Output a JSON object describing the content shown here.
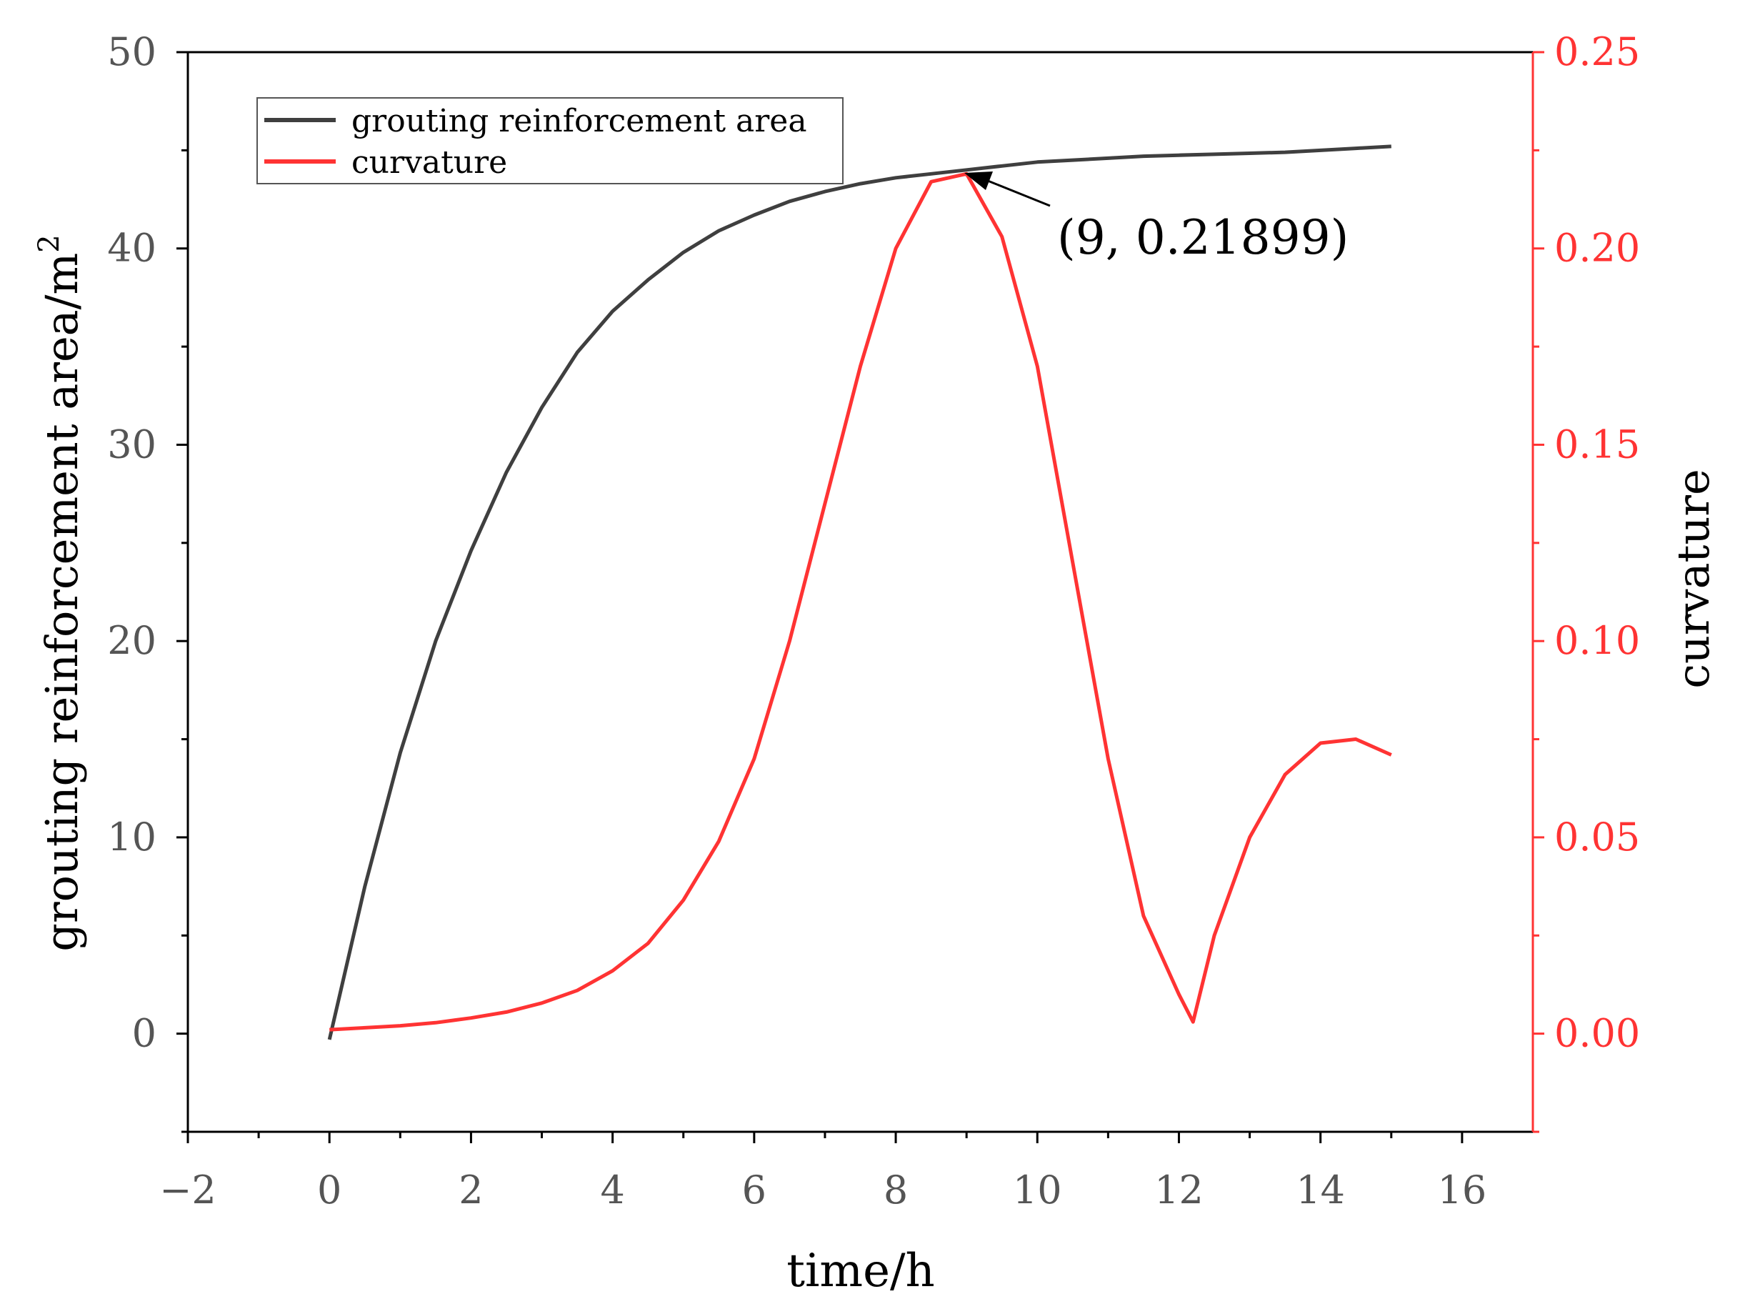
{
  "chart_data": {
    "type": "line",
    "xlabel": "time/h",
    "ylabel_left": "grouting reinforcement area/m",
    "ylabel_left_superscript": "2",
    "ylabel_right": "curvature",
    "xlim": [
      -2,
      17
    ],
    "ylim_left": [
      -5,
      50
    ],
    "ylim_right": [
      -0.025,
      0.25
    ],
    "x_ticks": [
      -2,
      0,
      2,
      4,
      6,
      8,
      10,
      12,
      14,
      16
    ],
    "x_tick_labels": [
      "−2",
      "0",
      "2",
      "4",
      "6",
      "8",
      "10",
      "12",
      "14",
      "16"
    ],
    "y_left_ticks": [
      0,
      10,
      20,
      30,
      40,
      50
    ],
    "y_left_tick_labels": [
      "0",
      "10",
      "20",
      "30",
      "40",
      "50"
    ],
    "y_right_ticks": [
      0,
      0.05,
      0.1,
      0.15,
      0.2,
      0.25
    ],
    "y_right_tick_labels": [
      "0.00",
      "0.05",
      "0.10",
      "0.15",
      "0.20",
      "0.25"
    ],
    "grid": false,
    "legend_position": "top-left",
    "colors": {
      "area": "#3f3f3f",
      "curvature": "#ff3333",
      "right_axis": "#ff3333",
      "left_axis_text": "#555555"
    },
    "series": [
      {
        "name": "grouting reinforcement area",
        "axis": "left",
        "x": [
          0,
          0.5,
          1,
          1.5,
          2,
          2.5,
          3,
          3.5,
          4,
          4.5,
          5,
          5.5,
          6,
          6.5,
          7,
          7.5,
          8,
          8.5,
          9,
          9.5,
          10,
          10.5,
          11,
          11.5,
          12,
          12.5,
          13,
          13.5,
          14,
          14.5,
          15
        ],
        "y": [
          -0.3,
          7.5,
          14.3,
          20.0,
          24.6,
          28.6,
          31.9,
          34.7,
          36.8,
          38.4,
          39.8,
          40.9,
          41.7,
          42.4,
          42.9,
          43.3,
          43.6,
          43.8,
          44.0,
          44.2,
          44.4,
          44.5,
          44.6,
          44.7,
          44.75,
          44.8,
          44.85,
          44.9,
          45.0,
          45.1,
          45.2
        ]
      },
      {
        "name": "curvature",
        "axis": "right",
        "x": [
          0,
          0.5,
          1,
          1.5,
          2,
          2.5,
          3,
          3.5,
          4,
          4.5,
          5,
          5.5,
          6,
          6.5,
          7,
          7.5,
          8,
          8.5,
          9,
          9.5,
          10,
          10.5,
          11,
          11.5,
          12,
          12.2,
          12.5,
          13,
          13.5,
          14,
          14.5,
          15
        ],
        "y": [
          0.001,
          0.0015,
          0.002,
          0.0028,
          0.004,
          0.0055,
          0.0078,
          0.011,
          0.016,
          0.023,
          0.034,
          0.049,
          0.07,
          0.1,
          0.135,
          0.17,
          0.2,
          0.217,
          0.219,
          0.203,
          0.17,
          0.12,
          0.07,
          0.03,
          0.01,
          0.003,
          0.025,
          0.05,
          0.066,
          0.074,
          0.075,
          0.071
        ]
      }
    ],
    "annotation": {
      "text": "(9,  0.21899)",
      "x": 9,
      "y": 0.21899,
      "axis": "right"
    }
  }
}
